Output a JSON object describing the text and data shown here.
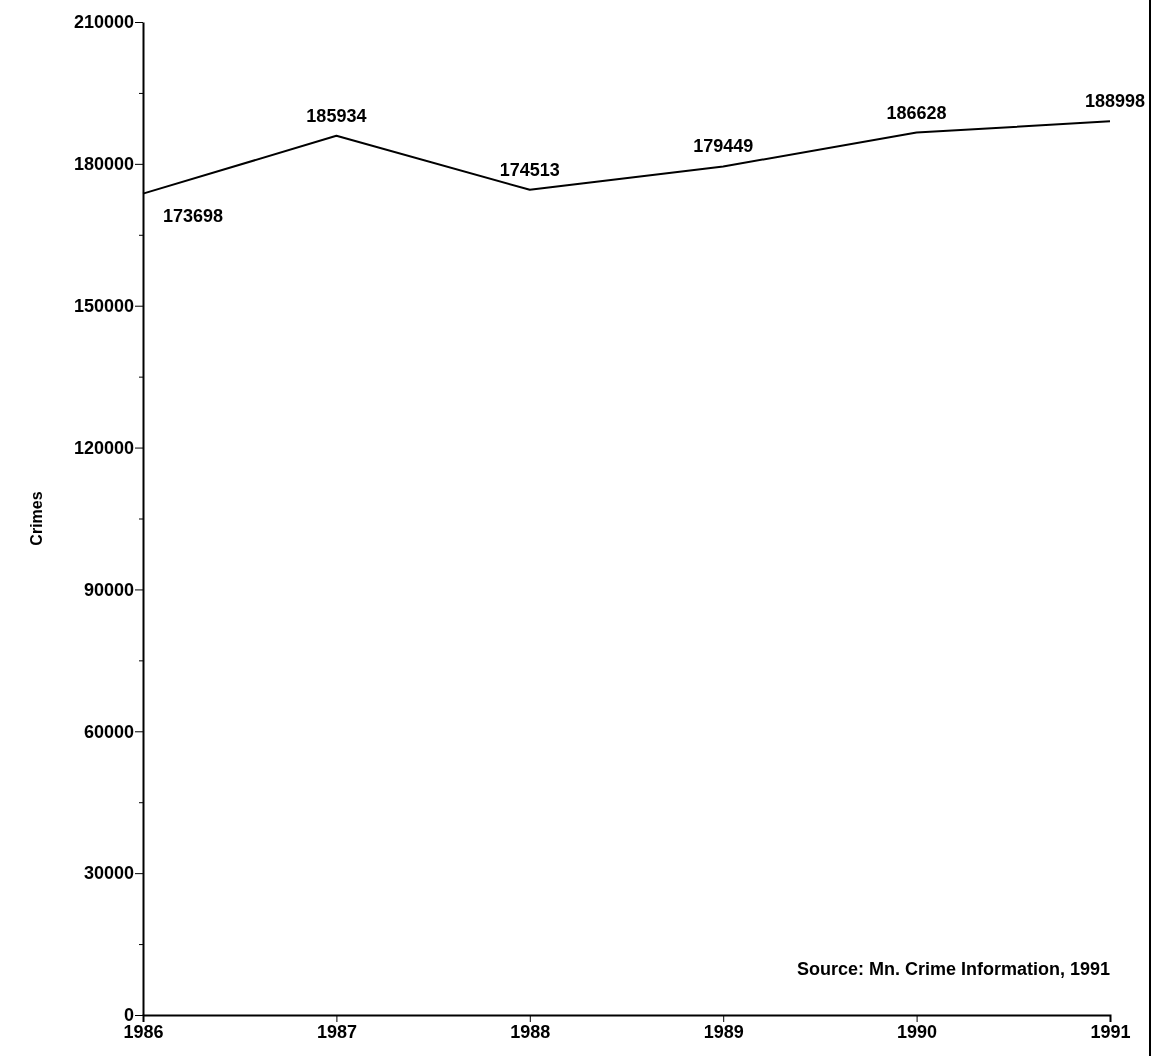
{
  "chart_data": {
    "type": "line",
    "ylabel": "Crimes",
    "x": [
      1986,
      1987,
      1988,
      1989,
      1990,
      1991
    ],
    "series": [
      {
        "color": "#000000",
        "values": [
          173698,
          185934,
          174513,
          179449,
          186628,
          188998
        ]
      }
    ],
    "xlim": [
      1986,
      1991
    ],
    "xticks": [
      1986,
      1987,
      1988,
      1989,
      1990,
      1991
    ],
    "ylim": [
      0,
      210000
    ],
    "yticks": [
      0,
      {
        "value": 15000,
        "label": null
      },
      30000,
      {
        "value": 45000,
        "label": null
      },
      60000,
      {
        "value": 75000,
        "label": null
      },
      90000,
      {
        "value": 105000,
        "label": null
      },
      120000,
      {
        "value": 135000,
        "label": null
      },
      150000,
      {
        "value": 165000,
        "label": null
      },
      180000,
      {
        "value": 195000,
        "label": null
      },
      210000
    ],
    "data_labels": true,
    "grid": false,
    "marker": "none",
    "line_style": "solid",
    "annotations": [
      "Source: Mn. Crime Information, 1991"
    ]
  }
}
